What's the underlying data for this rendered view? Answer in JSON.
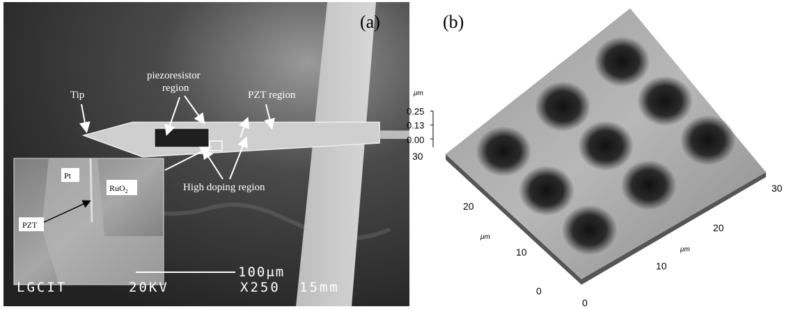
{
  "panel_a": {
    "label": "(a)",
    "annotations": {
      "tip": "Tip",
      "piezoresistor": [
        "piezoresistor",
        "region"
      ],
      "pzt_region": "PZT region",
      "high_doping": "High doping region"
    },
    "inset": {
      "pt": "Pt",
      "ruo2": "RuO",
      "ruo2_sub": "2",
      "pzt": "PZT"
    },
    "scale_bar": "100μm",
    "footer": [
      "LGCIT",
      "20KV",
      "X250",
      "15mm"
    ]
  },
  "panel_b": {
    "label": "(b)",
    "z_unit": "μm",
    "z_ticks": [
      "0.25",
      "0.13",
      "0.00"
    ],
    "left_ticks": [
      "30",
      "20",
      "10",
      "0"
    ],
    "left_unit": "μm",
    "right_ticks": [
      "0",
      "10",
      "20",
      "30"
    ],
    "right_unit": "μm"
  }
}
